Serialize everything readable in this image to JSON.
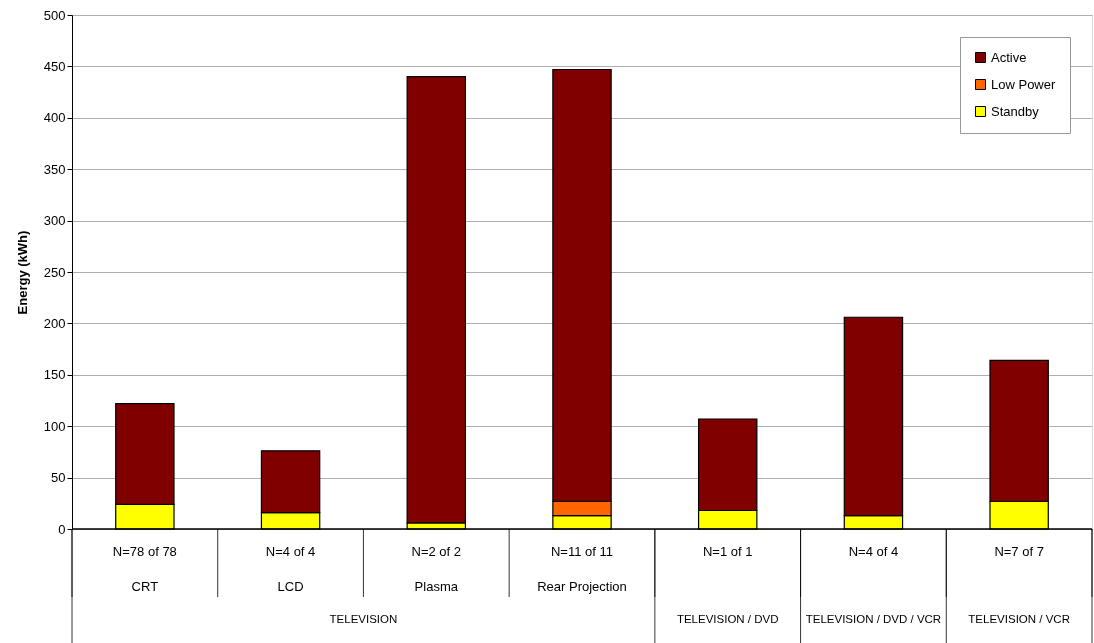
{
  "chart_data": {
    "type": "bar",
    "stacked": true,
    "ylabel": "Energy (kWh)",
    "categories": [
      "N=78 of 78\nCRT",
      "N=4 of 4\nLCD",
      "N=2 of 2\nPlasma",
      "N=11 of 11\nRear Projection",
      "N=1 of 1",
      "N=4 of 4",
      "N=7 of 7"
    ],
    "annotations": [
      "TELEVISION",
      "TELEVISION / DVD",
      "TELEVISION / DVD / VCR",
      "TELEVISION / VCR"
    ],
    "series": [
      {
        "name": "Standby",
        "color": "#ffff00",
        "values": [
          24,
          16,
          6,
          13,
          18,
          13,
          27
        ]
      },
      {
        "name": "Low Power",
        "color": "#ff6600",
        "values": [
          null,
          null,
          null,
          14,
          null,
          null,
          null
        ]
      },
      {
        "name": "Active",
        "color": "#800000",
        "values": [
          98,
          60,
          434,
          420,
          89,
          193,
          137
        ]
      }
    ],
    "ylim": [
      0,
      500
    ],
    "yticks": [
      0,
      50,
      100,
      150,
      200,
      250,
      300,
      350,
      400,
      450,
      500
    ],
    "grid": "y",
    "legend": "top right"
  }
}
